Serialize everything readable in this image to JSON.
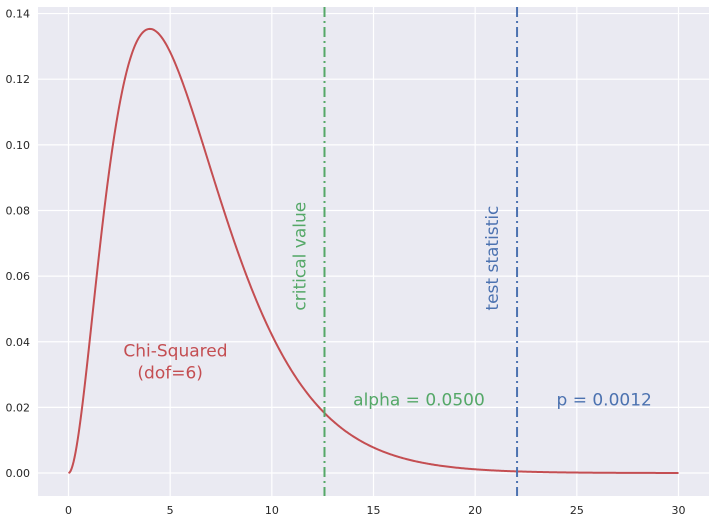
{
  "chart_data": {
    "type": "line",
    "title": "",
    "xlabel": "",
    "ylabel": "",
    "xlim": [
      -1.5,
      31.5
    ],
    "ylim": [
      -0.007,
      0.142
    ],
    "grid": true,
    "x_ticks": [
      0,
      5,
      10,
      15,
      20,
      25,
      30
    ],
    "x_tick_labels": [
      "0",
      "5",
      "10",
      "15",
      "20",
      "25",
      "30"
    ],
    "y_ticks": [
      0.0,
      0.02,
      0.04,
      0.06,
      0.08,
      0.1,
      0.12,
      0.14
    ],
    "y_tick_labels": [
      "0.00",
      "0.02",
      "0.04",
      "0.06",
      "0.08",
      "0.10",
      "0.12",
      "0.14"
    ],
    "series": [
      {
        "distribution": "chi-squared",
        "dof": 6,
        "x_range": [
          0,
          30
        ],
        "color": "#c44e52",
        "label_lines": [
          "Chi-Squared",
          "(dof=6)"
        ]
      }
    ],
    "reference_lines": [
      {
        "x": 12.59,
        "style": "dashdot",
        "color": "#55a868",
        "label": "critical value"
      },
      {
        "x": 22.06,
        "style": "dashdot",
        "color": "#4c72b0",
        "label": "test statistic"
      }
    ],
    "annotations": [
      {
        "text": "alpha = 0.0500",
        "x": 14.0,
        "y": 0.0205,
        "color": "#55a868"
      },
      {
        "text": "p = 0.0012",
        "x": 24.0,
        "y": 0.0205,
        "color": "#4c72b0"
      }
    ],
    "curve_label_anchor": {
      "x": 2.7,
      "y": 0.0355
    }
  },
  "style": {
    "plot_background": "#eaeaf2",
    "grid_color": "#ffffff",
    "tick_label_color": "#262626"
  }
}
